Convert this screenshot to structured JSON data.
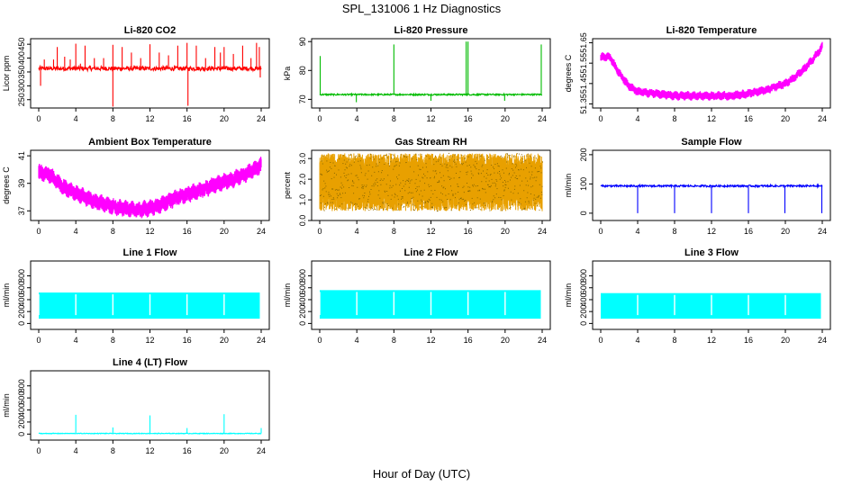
{
  "figure": {
    "title": "SPL_131006  1 Hz Diagnostics",
    "xlabel": "Hour of Day (UTC)"
  },
  "chart_data": [
    {
      "type": "line",
      "title": "Li-820 CO2",
      "ylabel": "Licor ppm",
      "color": "#ff0000",
      "xlim": [
        0,
        24
      ],
      "ylim": [
        220,
        470
      ],
      "yticks": [
        250,
        300,
        350,
        400,
        450
      ],
      "style": "spikes",
      "base": 363,
      "band": [
        355,
        370
      ],
      "spikes": [
        [
          0.2,
          300
        ],
        [
          0.6,
          395
        ],
        [
          1.6,
          395
        ],
        [
          2.0,
          440
        ],
        [
          2.8,
          405
        ],
        [
          3.4,
          395
        ],
        [
          4.0,
          452
        ],
        [
          4.5,
          380
        ],
        [
          5.0,
          445
        ],
        [
          6.0,
          400
        ],
        [
          7.0,
          400
        ],
        [
          8.0,
          448
        ],
        [
          8.0,
          225
        ],
        [
          9.0,
          440
        ],
        [
          10.0,
          420
        ],
        [
          11.0,
          400
        ],
        [
          12.0,
          450
        ],
        [
          13.0,
          420
        ],
        [
          14.0,
          410
        ],
        [
          15.0,
          445
        ],
        [
          16.0,
          455
        ],
        [
          16.1,
          228
        ],
        [
          17.0,
          445
        ],
        [
          18.0,
          400
        ],
        [
          19.0,
          440
        ],
        [
          19.6,
          420
        ],
        [
          20.0,
          440
        ],
        [
          21.0,
          415
        ],
        [
          22.0,
          445
        ],
        [
          22.9,
          400
        ],
        [
          23.5,
          455
        ],
        [
          23.8,
          440
        ],
        [
          23.9,
          330
        ]
      ]
    },
    {
      "type": "line",
      "title": "Li-820 Pressure",
      "ylabel": "kPa",
      "color": "#00bb00",
      "xlim": [
        0,
        24
      ],
      "ylim": [
        67,
        91
      ],
      "yticks": [
        70,
        80,
        90
      ],
      "style": "spikes",
      "base": 71.6,
      "band": [
        71.4,
        71.9
      ],
      "spikes": [
        [
          0.05,
          85
        ],
        [
          3.95,
          69
        ],
        [
          8.0,
          89
        ],
        [
          12.0,
          69.5
        ],
        [
          15.8,
          90
        ],
        [
          16.0,
          90
        ],
        [
          19.95,
          69.5
        ],
        [
          23.9,
          89
        ]
      ]
    },
    {
      "type": "line",
      "title": "Li-820 Temperature",
      "ylabel": "degrees C",
      "color": "#ff00ff",
      "xlim": [
        0,
        24
      ],
      "ylim": [
        51.33,
        51.67
      ],
      "yticks": [
        51.35,
        51.45,
        51.55,
        51.65
      ],
      "ytick_labels": [
        "51.35",
        "51.45",
        "51.55",
        "51.65"
      ],
      "style": "band",
      "profile": [
        [
          0,
          51.58
        ],
        [
          1,
          51.58
        ],
        [
          2,
          51.5
        ],
        [
          3,
          51.44
        ],
        [
          4,
          51.41
        ],
        [
          6,
          51.4
        ],
        [
          8,
          51.39
        ],
        [
          10,
          51.39
        ],
        [
          12,
          51.39
        ],
        [
          14,
          51.39
        ],
        [
          16,
          51.4
        ],
        [
          18,
          51.42
        ],
        [
          20,
          51.45
        ],
        [
          21,
          51.48
        ],
        [
          22,
          51.52
        ],
        [
          23,
          51.57
        ],
        [
          24,
          51.63
        ]
      ],
      "spread": 0.04
    },
    {
      "type": "line",
      "title": "Ambient Box Temperature",
      "ylabel": "degrees C",
      "color": "#ff00ff",
      "xlim": [
        0,
        24
      ],
      "ylim": [
        36.3,
        41.4
      ],
      "yticks": [
        37,
        39,
        41
      ],
      "style": "band",
      "profile": [
        [
          0,
          39.8
        ],
        [
          1,
          39.7
        ],
        [
          2,
          39.1
        ],
        [
          3,
          38.6
        ],
        [
          4,
          38.3
        ],
        [
          5,
          38.0
        ],
        [
          6,
          37.7
        ],
        [
          7,
          37.5
        ],
        [
          8,
          37.3
        ],
        [
          9,
          37.2
        ],
        [
          10,
          37.1
        ],
        [
          11,
          37.1
        ],
        [
          12,
          37.2
        ],
        [
          13,
          37.4
        ],
        [
          14,
          37.7
        ],
        [
          15,
          38.0
        ],
        [
          16,
          38.2
        ],
        [
          17,
          38.4
        ],
        [
          18,
          38.6
        ],
        [
          19,
          38.9
        ],
        [
          20,
          39.1
        ],
        [
          21,
          39.3
        ],
        [
          22,
          39.6
        ],
        [
          23,
          39.9
        ],
        [
          24,
          40.3
        ]
      ],
      "spread": 1.1
    },
    {
      "type": "line",
      "title": "Gas Stream RH",
      "ylabel": "percent",
      "color": "#e8a000",
      "color2": "#886600",
      "xlim": [
        0,
        24
      ],
      "ylim": [
        0,
        3.4
      ],
      "yticks": [
        0.0,
        1.0,
        2.0,
        3.0
      ],
      "ytick_labels": [
        "0.0",
        "1.0",
        "2.0",
        "3.0"
      ],
      "style": "noise",
      "center": 1.85,
      "spread": 1.4
    },
    {
      "type": "line",
      "title": "Sample Flow",
      "ylabel": "ml/min",
      "color": "#0000ff",
      "xlim": [
        0,
        24
      ],
      "ylim": [
        -25,
        215
      ],
      "yticks": [
        0,
        100,
        200
      ],
      "style": "spikes",
      "base": 93,
      "band": [
        90,
        96
      ],
      "spikes": [
        [
          4.0,
          0
        ],
        [
          8.0,
          0
        ],
        [
          12.0,
          0
        ],
        [
          16.0,
          0
        ],
        [
          19.95,
          0
        ],
        [
          23.95,
          0
        ]
      ]
    },
    {
      "type": "line",
      "title": "Line 1 Flow",
      "ylabel": "ml/min",
      "color": "#00ffff",
      "xlim": [
        0,
        24
      ],
      "ylim": [
        -100,
        1050
      ],
      "yticks": [
        0,
        200,
        400,
        600,
        800
      ],
      "style": "square",
      "low": 80,
      "high": 520,
      "dips": [
        0.0,
        4.0,
        8.0,
        12.0,
        16.0,
        20.0,
        24.0
      ]
    },
    {
      "type": "line",
      "title": "Line 2 Flow",
      "ylabel": "ml/min",
      "color": "#00ffff",
      "xlim": [
        0,
        24
      ],
      "ylim": [
        -100,
        1050
      ],
      "yticks": [
        0,
        200,
        400,
        600,
        800
      ],
      "style": "square",
      "low": 80,
      "high": 560,
      "dips": [
        0.0,
        4.0,
        8.0,
        12.0,
        16.0,
        20.0,
        24.0
      ]
    },
    {
      "type": "line",
      "title": "Line 3 Flow",
      "ylabel": "ml/min",
      "color": "#00ffff",
      "xlim": [
        0,
        24
      ],
      "ylim": [
        -100,
        1050
      ],
      "yticks": [
        0,
        200,
        400,
        600,
        800
      ],
      "style": "square",
      "low": 80,
      "high": 510,
      "dips": [
        4.0,
        8.0,
        12.0,
        16.0,
        20.0
      ]
    },
    {
      "type": "line",
      "title": "Line 4 (LT) Flow",
      "ylabel": "ml/min",
      "color": "#00ffff",
      "xlim": [
        0,
        24
      ],
      "ylim": [
        -100,
        1050
      ],
      "yticks": [
        0,
        200,
        400,
        600,
        800
      ],
      "style": "spikes",
      "base": 10,
      "band": [
        5,
        15
      ],
      "spikes": [
        [
          4.0,
          320
        ],
        [
          8.0,
          110
        ],
        [
          12.0,
          310
        ],
        [
          16.0,
          100
        ],
        [
          20.0,
          330
        ],
        [
          24.0,
          100
        ]
      ]
    }
  ],
  "xticks": [
    0,
    4,
    8,
    12,
    16,
    20,
    24
  ]
}
